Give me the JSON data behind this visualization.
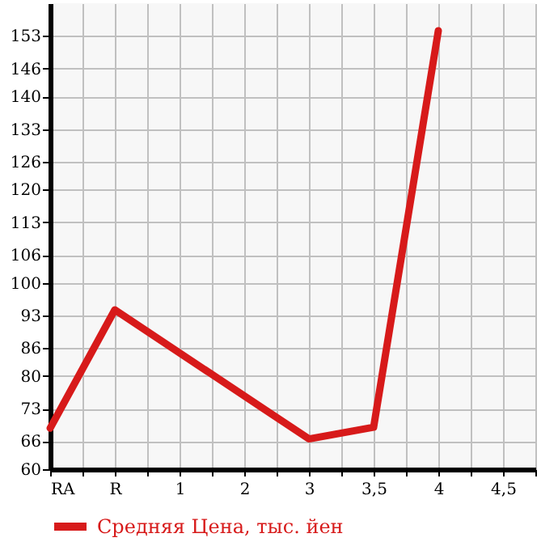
{
  "chart_data": {
    "type": "line",
    "categories": [
      "RA",
      "R",
      "1",
      "2",
      "3",
      "3,5",
      "4",
      "4,5"
    ],
    "series": [
      {
        "name": "Средняя Цена, тыс. йен",
        "color": "#d71a1a",
        "values": [
          68.8,
          94.2,
          null,
          null,
          66.5,
          69.0,
          154.1,
          null
        ]
      }
    ],
    "ylim": [
      60,
      160
    ],
    "yticks": [
      60,
      66,
      73,
      80,
      86,
      93,
      100,
      106,
      113,
      120,
      126,
      133,
      140,
      146,
      153
    ],
    "grid": true,
    "legend": "bottom",
    "marker": "none",
    "line_style": "solid"
  }
}
